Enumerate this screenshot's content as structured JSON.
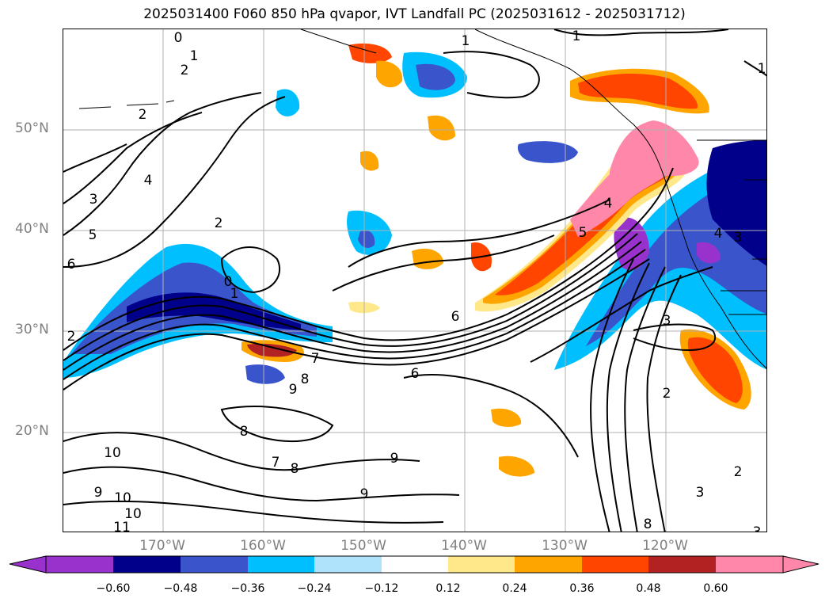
{
  "title": "2025031400 F060 850 hPa qvapor, IVT Landfall PC (2025031612 - 2025031712)",
  "lat_labels": [
    "50°N",
    "40°N",
    "30°N",
    "20°N"
  ],
  "lon_labels": [
    "170°W",
    "160°W",
    "150°W",
    "140°W",
    "130°W",
    "120°W"
  ],
  "colorbar": {
    "ticks": [
      "−0.60",
      "−0.48",
      "−0.36",
      "−0.24",
      "−0.12",
      "0.12",
      "0.24",
      "0.36",
      "0.48",
      "0.60"
    ],
    "colors": [
      "#9932cc",
      "#00008b",
      "#3a55cc",
      "#00bfff",
      "#aee3fb",
      "#ffffff",
      "#ffe88a",
      "#ffa500",
      "#ff4500",
      "#b22222",
      "#ff88aa"
    ]
  },
  "contour_labels": [
    "0",
    "1",
    "2",
    "2",
    "3",
    "4",
    "5",
    "6",
    "2",
    "0",
    "1",
    "2",
    "6",
    "7",
    "8",
    "9",
    "6",
    "8",
    "7",
    "8",
    "9",
    "9",
    "10",
    "9",
    "10",
    "10",
    "11",
    "1",
    "1",
    "1",
    "4",
    "5",
    "3",
    "2",
    "2",
    "3",
    "8",
    "3",
    "4",
    "3"
  ]
}
